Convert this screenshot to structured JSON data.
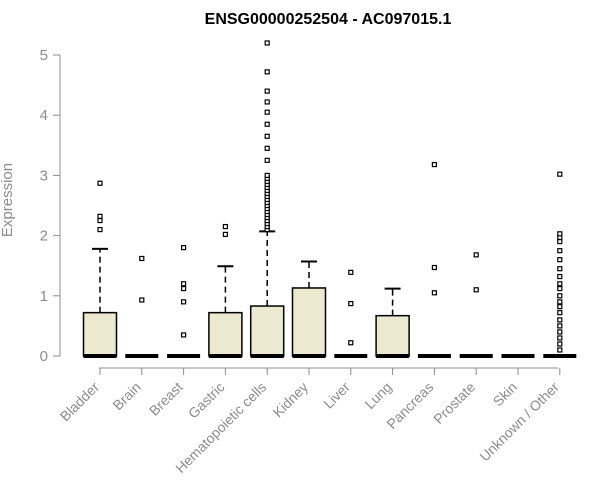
{
  "chart_data": {
    "type": "box",
    "title": "ENSG00000252504 - AC097015.1",
    "ylabel": "Expression",
    "xlabel": "",
    "ylim": [
      0,
      5.2
    ],
    "yticks": [
      0,
      1,
      2,
      3,
      4,
      5
    ],
    "grid": false,
    "categories": [
      "Bladder",
      "Brain",
      "Breast",
      "Gastric",
      "Hematopoietic cells",
      "Kidney",
      "Liver",
      "Lung",
      "Pancreas",
      "Prostate",
      "Skin",
      "Unknown / Other"
    ],
    "boxes": [
      {
        "q1": 0,
        "median": 0,
        "q3": 0.72,
        "whisker_low": 0,
        "whisker_high": 1.78,
        "outliers": [
          2.1,
          2.25,
          2.32,
          2.87
        ]
      },
      {
        "q1": 0,
        "median": 0,
        "q3": 0,
        "whisker_low": 0,
        "whisker_high": 0,
        "outliers": [
          0.93,
          1.62
        ]
      },
      {
        "q1": 0,
        "median": 0,
        "q3": 0,
        "whisker_low": 0,
        "whisker_high": 0,
        "outliers": [
          0.35,
          0.9,
          1.12,
          1.2,
          1.8
        ]
      },
      {
        "q1": 0,
        "median": 0,
        "q3": 0.72,
        "whisker_low": 0,
        "whisker_high": 1.49,
        "outliers": [
          2.02,
          2.15
        ]
      },
      {
        "q1": 0,
        "median": 0,
        "q3": 0.83,
        "whisker_low": 0,
        "whisker_high": 2.07,
        "outliers": [
          2.1,
          2.15,
          2.2,
          2.25,
          2.3,
          2.35,
          2.4,
          2.45,
          2.5,
          2.55,
          2.6,
          2.65,
          2.7,
          2.75,
          2.8,
          2.85,
          2.9,
          2.95,
          3.0,
          3.25,
          3.45,
          3.65,
          3.85,
          4.05,
          4.22,
          4.4,
          4.72,
          5.2
        ]
      },
      {
        "q1": 0,
        "median": 0,
        "q3": 1.13,
        "whisker_low": 0,
        "whisker_high": 1.57,
        "outliers": []
      },
      {
        "q1": 0,
        "median": 0,
        "q3": 0,
        "whisker_low": 0,
        "whisker_high": 0,
        "outliers": [
          0.22,
          0.87,
          1.39
        ]
      },
      {
        "q1": 0,
        "median": 0,
        "q3": 0.67,
        "whisker_low": 0,
        "whisker_high": 1.12,
        "outliers": []
      },
      {
        "q1": 0,
        "median": 0,
        "q3": 0,
        "whisker_low": 0,
        "whisker_high": 0,
        "outliers": [
          1.05,
          1.47,
          3.18
        ]
      },
      {
        "q1": 0,
        "median": 0,
        "q3": 0,
        "whisker_low": 0,
        "whisker_high": 0,
        "outliers": [
          1.1,
          1.68
        ]
      },
      {
        "q1": 0,
        "median": 0,
        "q3": 0,
        "whisker_low": 0,
        "whisker_high": 0,
        "outliers": []
      },
      {
        "q1": 0,
        "median": 0,
        "q3": 0,
        "whisker_low": 0,
        "whisker_high": 0,
        "outliers": [
          0.1,
          0.2,
          0.3,
          0.4,
          0.5,
          0.6,
          0.72,
          0.82,
          0.9,
          1.0,
          1.12,
          1.2,
          1.32,
          1.45,
          1.6,
          1.75,
          1.9,
          1.97,
          2.03,
          3.02
        ]
      }
    ],
    "colors": {
      "box_fill": "#ede8d0",
      "box_stroke": "#000000",
      "axis": "#8c8c8c",
      "title": "#000000"
    }
  }
}
